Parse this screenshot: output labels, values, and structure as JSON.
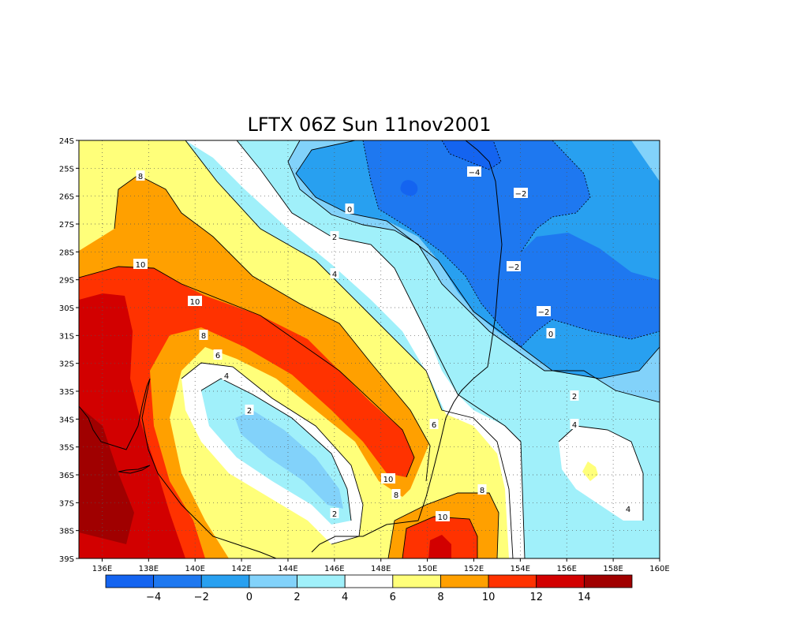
{
  "title": "LFTX 06Z Sun 11nov2001",
  "map": {
    "lon_range": [
      135.0,
      160.0
    ],
    "lat_range": [
      -39.0,
      -24.0
    ],
    "x_ticks": [
      "136E",
      "138E",
      "140E",
      "142E",
      "144E",
      "146E",
      "148E",
      "150E",
      "152E",
      "154E",
      "156E",
      "158E",
      "160E"
    ],
    "y_ticks": [
      "24S",
      "25S",
      "26S",
      "27S",
      "28S",
      "29S",
      "30S",
      "31S",
      "32S",
      "33S",
      "34S",
      "35S",
      "36S",
      "37S",
      "38S",
      "39S"
    ],
    "grid": "dotted"
  },
  "colorbar": {
    "labels": [
      "−4",
      "−2",
      "0",
      "2",
      "4",
      "6",
      "8",
      "10",
      "12",
      "14"
    ],
    "colors": [
      "#1464f0",
      "#1e78f0",
      "#28a0f0",
      "#82d2fa",
      "#a0f0fa",
      "#ffffff",
      "#ffff7a",
      "#ffa000",
      "#ff3200",
      "#d20000",
      "#a00000"
    ]
  },
  "contour_labels": [
    {
      "text": "8"
    },
    {
      "text": "10"
    },
    {
      "text": "10"
    },
    {
      "text": "8"
    },
    {
      "text": "6"
    },
    {
      "text": "4"
    },
    {
      "text": "2"
    },
    {
      "text": "2"
    },
    {
      "text": "10"
    },
    {
      "text": "8"
    },
    {
      "text": "6"
    },
    {
      "text": "8"
    },
    {
      "text": "10"
    },
    {
      "text": "4"
    },
    {
      "text": "2"
    },
    {
      "text": "0"
    },
    {
      "text": "−4"
    },
    {
      "text": "−2"
    },
    {
      "text": "−2"
    },
    {
      "text": "−2"
    },
    {
      "text": "0"
    },
    {
      "text": "2"
    },
    {
      "text": "4"
    },
    {
      "text": "4"
    }
  ]
}
